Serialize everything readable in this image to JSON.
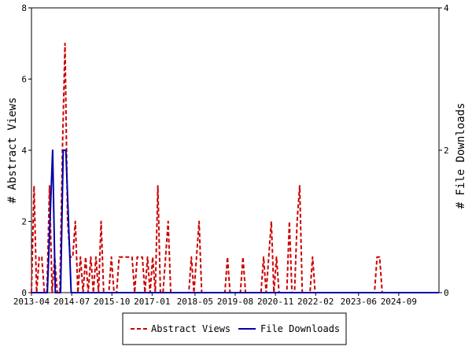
{
  "chart_data": {
    "type": "line",
    "title": "",
    "ylabel_left": "# Abstract Views",
    "ylabel_right": "# File Downloads",
    "ylim_left": [
      0,
      8
    ],
    "ylim_right": [
      0,
      4
    ],
    "yticks_left": [
      "0",
      "2",
      "4",
      "6",
      "8"
    ],
    "yticks_right": [
      "0",
      "2",
      "4"
    ],
    "x_range_months": [
      "2013-04",
      "2025-12"
    ],
    "x_tick_labels": [
      "2013-04",
      "2014-07",
      "2015-10",
      "2017-01",
      "2018-05",
      "2019-08",
      "2020-11",
      "2022-02",
      "2023-06",
      "2024-09"
    ],
    "legend_position": "bottom",
    "series": [
      {
        "name": "Abstract Views",
        "axis": "left",
        "color": "#cc0000",
        "style": "dashed",
        "values": [
          0,
          3,
          0,
          1,
          1,
          0,
          0,
          3,
          0,
          1,
          0,
          0,
          4,
          7,
          2,
          1,
          1,
          2,
          0,
          1,
          0,
          1,
          0,
          1,
          0,
          1,
          0,
          2,
          0,
          0,
          0,
          1,
          0,
          0,
          1,
          1,
          1,
          1,
          1,
          1,
          0,
          1,
          1,
          1,
          0,
          1,
          0,
          1,
          0,
          3,
          0,
          0,
          1,
          2,
          0,
          0,
          0,
          0,
          0,
          0,
          0,
          0,
          1,
          0,
          1,
          2,
          0,
          0,
          0,
          0,
          0,
          0,
          0,
          0,
          0,
          0,
          1,
          0,
          0,
          0,
          0,
          0,
          1,
          0,
          0,
          0,
          0,
          0,
          0,
          0,
          1,
          0,
          1,
          2,
          0,
          1,
          0,
          0,
          0,
          0,
          2,
          0,
          0,
          2,
          3,
          0,
          0,
          0,
          0,
          1,
          0,
          0,
          0,
          0,
          0,
          0,
          0,
          0,
          0,
          0,
          0,
          0,
          0,
          0,
          0,
          0,
          0,
          0,
          0,
          0,
          0,
          0,
          0,
          0,
          1,
          1,
          0,
          0,
          0,
          0,
          0,
          0,
          0,
          0,
          0,
          0,
          0,
          0,
          0,
          0,
          0,
          0,
          0,
          0,
          0,
          0,
          0,
          0,
          0
        ]
      },
      {
        "name": "File Downloads",
        "axis": "right",
        "color": "#0000aa",
        "style": "solid",
        "values": [
          0,
          0,
          0,
          0,
          0,
          0,
          0,
          1,
          2,
          0,
          0,
          0,
          2,
          2,
          1,
          0,
          0,
          0,
          0,
          0,
          0,
          0,
          0,
          0,
          0,
          0,
          0,
          0,
          0,
          0,
          0,
          0,
          0,
          0,
          0,
          0,
          0,
          0,
          0,
          0,
          0,
          0,
          0,
          0,
          0,
          0,
          0,
          0,
          0,
          0,
          0,
          0,
          0,
          0,
          0,
          0,
          0,
          0,
          0,
          0,
          0,
          0,
          0,
          0,
          0,
          0,
          0,
          0,
          0,
          0,
          0,
          0,
          0,
          0,
          0,
          0,
          0,
          0,
          0,
          0,
          0,
          0,
          0,
          0,
          0,
          0,
          0,
          0,
          0,
          0,
          0,
          0,
          0,
          0,
          0,
          0,
          0,
          0,
          0,
          0,
          0,
          0,
          0,
          0,
          0,
          0,
          0,
          0,
          0,
          0,
          0,
          0,
          0,
          0,
          0,
          0,
          0,
          0,
          0,
          0,
          0,
          0,
          0,
          0,
          0,
          0,
          0,
          0,
          0,
          0,
          0,
          0,
          0,
          0,
          0,
          0,
          0,
          0,
          0,
          0,
          0,
          0,
          0,
          0,
          0,
          0,
          0,
          0,
          0,
          0,
          0,
          0,
          0,
          0,
          0
        ]
      }
    ]
  }
}
